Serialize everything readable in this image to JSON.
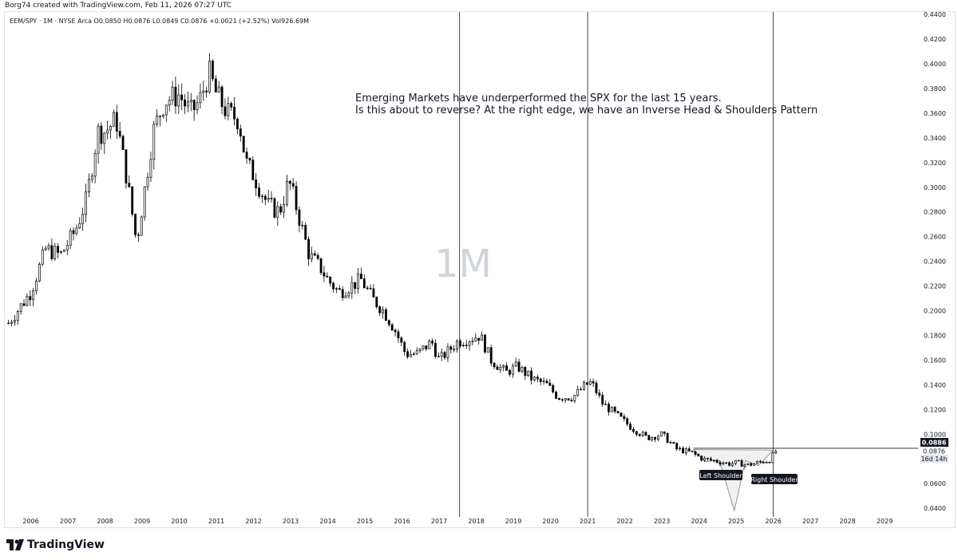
{
  "caption": "Borg74 created with TradingView.com, Feb 11, 2026 07:27 UTC",
  "legend": "EEM/SPY · 1M · NYSE Arca  O0.0850  H0.0876  L0.0849  C0.0876  +0.0021 (+2.52%)  Vol926.69M",
  "brand": {
    "name": "TradingView",
    "logo_icon": "tradingview-logo-icon"
  },
  "chart_data": {
    "type": "candlestick",
    "symbol": "EEM/SPY",
    "interval_watermark": "1M",
    "y_axis": {
      "ylim": [
        0.033,
        0.442
      ],
      "ticks": [
        "0.0400",
        "0.0600",
        "0.0800",
        "0.1000",
        "0.1200",
        "0.1400",
        "0.1600",
        "0.1800",
        "0.2000",
        "0.2200",
        "0.2400",
        "0.2600",
        "0.2800",
        "0.3000",
        "0.3200",
        "0.3400",
        "0.3600",
        "0.3800",
        "0.4000",
        "0.4200",
        "0.4400"
      ],
      "position": "right"
    },
    "x_axis": {
      "xlim": [
        2005.3,
        2029.9
      ],
      "ticks": [
        "2006",
        "2007",
        "2008",
        "2009",
        "2010",
        "2011",
        "2012",
        "2013",
        "2014",
        "2015",
        "2016",
        "2017",
        "2018",
        "2019",
        "2020",
        "2021",
        "2022",
        "2023",
        "2024",
        "2025",
        "2026",
        "2027",
        "2028",
        "2029"
      ]
    },
    "price_anchors": [
      [
        2005.4,
        0.19
      ],
      [
        2006.0,
        0.215
      ],
      [
        2006.4,
        0.25
      ],
      [
        2006.8,
        0.245
      ],
      [
        2007.2,
        0.265
      ],
      [
        2007.5,
        0.29
      ],
      [
        2007.8,
        0.345
      ],
      [
        2008.0,
        0.345
      ],
      [
        2008.3,
        0.355
      ],
      [
        2008.6,
        0.305
      ],
      [
        2008.85,
        0.255
      ],
      [
        2009.0,
        0.285
      ],
      [
        2009.3,
        0.345
      ],
      [
        2009.6,
        0.37
      ],
      [
        2010.0,
        0.375
      ],
      [
        2010.3,
        0.36
      ],
      [
        2010.55,
        0.37
      ],
      [
        2010.8,
        0.393
      ],
      [
        2011.0,
        0.375
      ],
      [
        2011.3,
        0.36
      ],
      [
        2011.6,
        0.355
      ],
      [
        2011.8,
        0.32
      ],
      [
        2012.0,
        0.31
      ],
      [
        2012.4,
        0.285
      ],
      [
        2012.7,
        0.28
      ],
      [
        2012.95,
        0.305
      ],
      [
        2013.1,
        0.29
      ],
      [
        2013.5,
        0.245
      ],
      [
        2013.8,
        0.235
      ],
      [
        2014.0,
        0.225
      ],
      [
        2014.3,
        0.215
      ],
      [
        2014.6,
        0.22
      ],
      [
        2014.9,
        0.225
      ],
      [
        2015.2,
        0.21
      ],
      [
        2015.5,
        0.2
      ],
      [
        2015.8,
        0.185
      ],
      [
        2016.1,
        0.165
      ],
      [
        2016.4,
        0.165
      ],
      [
        2016.8,
        0.175
      ],
      [
        2017.0,
        0.16
      ],
      [
        2017.5,
        0.175
      ],
      [
        2017.9,
        0.178
      ],
      [
        2018.1,
        0.18
      ],
      [
        2018.4,
        0.16
      ],
      [
        2018.8,
        0.15
      ],
      [
        2019.1,
        0.155
      ],
      [
        2019.5,
        0.145
      ],
      [
        2019.9,
        0.14
      ],
      [
        2020.2,
        0.13
      ],
      [
        2020.6,
        0.13
      ],
      [
        2020.95,
        0.14
      ],
      [
        2021.1,
        0.142
      ],
      [
        2021.4,
        0.125
      ],
      [
        2021.8,
        0.115
      ],
      [
        2022.2,
        0.105
      ],
      [
        2022.6,
        0.097
      ],
      [
        2023.0,
        0.1
      ],
      [
        2023.4,
        0.088
      ],
      [
        2023.8,
        0.085
      ],
      [
        2024.1,
        0.08
      ],
      [
        2024.5,
        0.078
      ],
      [
        2024.8,
        0.076
      ],
      [
        2025.0,
        0.077
      ],
      [
        2025.3,
        0.075
      ],
      [
        2025.6,
        0.077
      ],
      [
        2025.9,
        0.079
      ],
      [
        2026.1,
        0.0876
      ]
    ],
    "vertical_lines_x": [
      2017.55,
      2021.0,
      2026.0
    ],
    "last_high": {
      "value": 0.0886,
      "label": "0.0886"
    },
    "last_close": {
      "value": 0.0876,
      "label": "0.0876"
    },
    "countdown": "16d 14h",
    "annotation_lines": [
      "Emerging Markets have underperformed the SPX for the last 15 years.",
      "Is this about to reverse?  At the right edge, we have an Inverse Head & Shoulders Pattern"
    ],
    "pattern": {
      "left_shoulder": {
        "label": "Left Shoulder",
        "x": 2024.15,
        "y": 0.078
      },
      "head": {
        "x": 2024.95,
        "y": 0.038
      },
      "right_shoulder": {
        "label": "Right Shoulder",
        "x": 2025.6,
        "y": 0.0745
      },
      "neckline_y": 0.0786,
      "start": {
        "x": 2023.85,
        "y": 0.0875
      },
      "end": {
        "x": 2026.0,
        "y": 0.0872
      }
    },
    "colors": {
      "up": "#ffffff",
      "down": "#000000",
      "outline": "#000000",
      "watermark": "#d1d4dc",
      "label_bg": "#131722",
      "label_text": "#ffffff"
    }
  }
}
